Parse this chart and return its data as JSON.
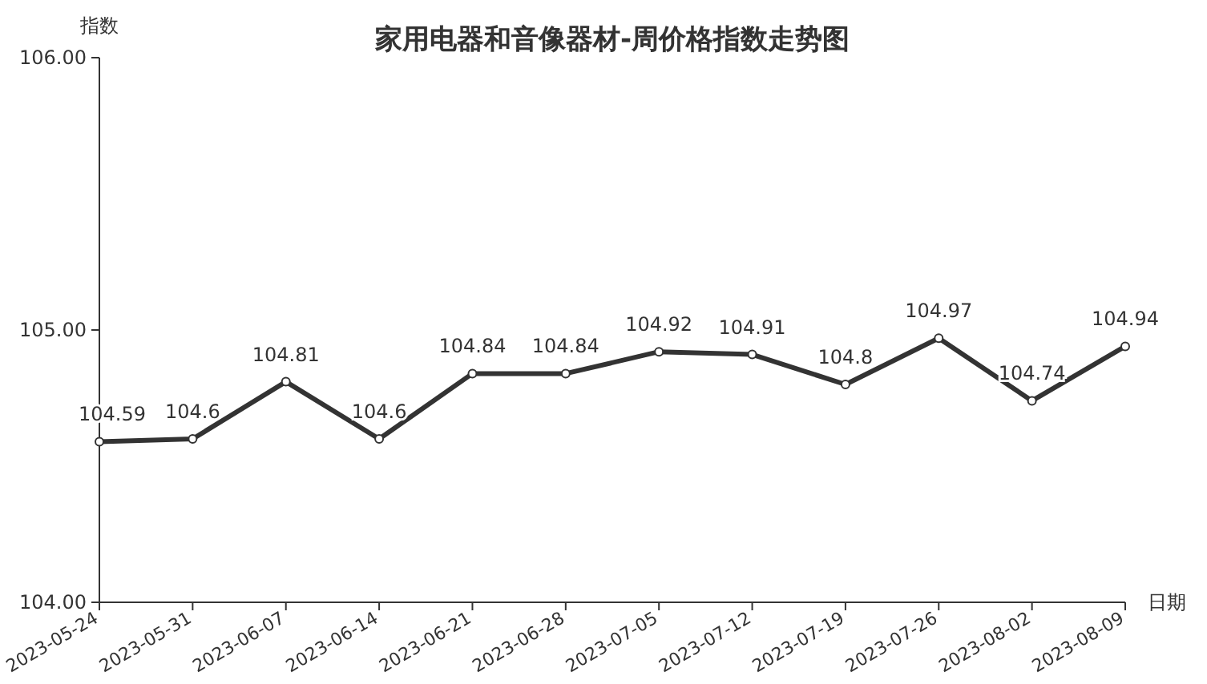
{
  "chart_data": {
    "type": "line",
    "title": "家用电器和音像器材-周价格指数走势图",
    "xlabel": "日期",
    "ylabel": "指数",
    "categories": [
      "2023-05-24",
      "2023-05-31",
      "2023-06-07",
      "2023-06-14",
      "2023-06-21",
      "2023-06-28",
      "2023-07-05",
      "2023-07-12",
      "2023-07-19",
      "2023-07-26",
      "2023-08-02",
      "2023-08-09"
    ],
    "series": [
      {
        "color": "#333333",
        "values": [
          104.59,
          104.6,
          104.81,
          104.6,
          104.84,
          104.84,
          104.92,
          104.91,
          104.8,
          104.97,
          104.74,
          104.94
        ]
      }
    ],
    "ylim": [
      104,
      106
    ],
    "yticks": [
      {
        "value": 104,
        "label": "104.00"
      },
      {
        "value": 105,
        "label": "105.00"
      },
      {
        "value": 106,
        "label": "106.00"
      }
    ],
    "data_labels": true,
    "marker": "circle",
    "line_style": "solid",
    "grid": false
  }
}
